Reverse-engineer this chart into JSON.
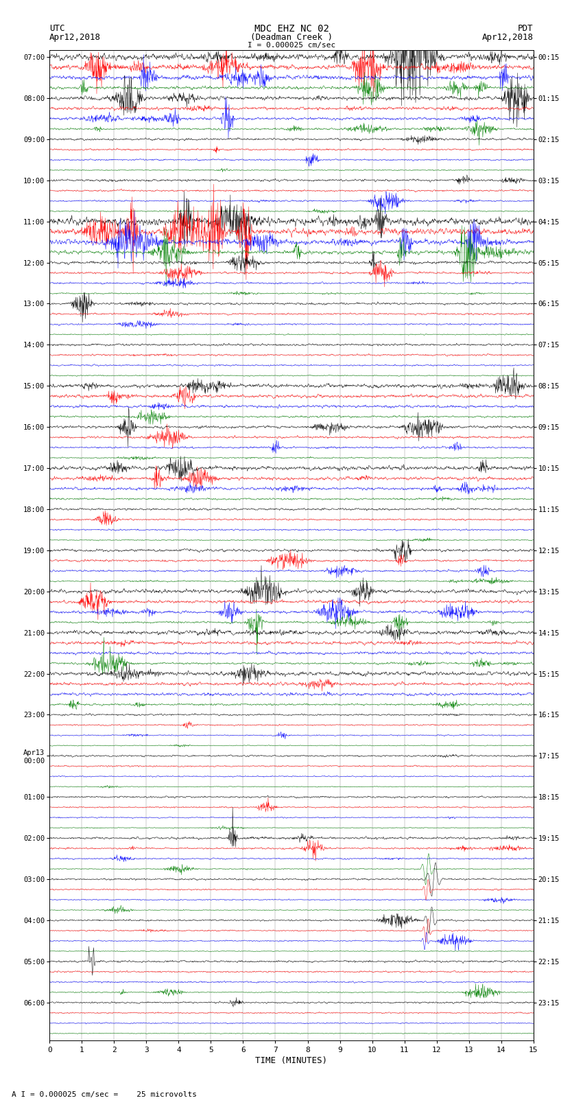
{
  "title_line1": "MDC EHZ NC 02",
  "title_line2": "(Deadman Creek )",
  "scale_label": "I = 0.000025 cm/sec",
  "footer_label": "A I = 0.000025 cm/sec =    25 microvolts",
  "xlabel": "TIME (MINUTES)",
  "utc_label": "UTC",
  "pdt_label": "PDT",
  "date_left": "Apr12,2018",
  "date_right": "Apr12,2018",
  "x_ticks": [
    0,
    1,
    2,
    3,
    4,
    5,
    6,
    7,
    8,
    9,
    10,
    11,
    12,
    13,
    14,
    15
  ],
  "x_min": 0,
  "x_max": 15,
  "colors": [
    "black",
    "red",
    "blue",
    "green"
  ],
  "bg_color": "white",
  "grid_color": "#aaaaaa",
  "n_rows": 96,
  "figsize": [
    8.5,
    16.13
  ],
  "dpi": 100,
  "utc_times_labeled": [
    "07:00",
    "08:00",
    "09:00",
    "10:00",
    "11:00",
    "12:00",
    "13:00",
    "14:00",
    "15:00",
    "16:00",
    "17:00",
    "18:00",
    "19:00",
    "20:00",
    "21:00",
    "22:00",
    "23:00",
    "Apr13\n00:00",
    "01:00",
    "02:00",
    "03:00",
    "04:00",
    "05:00",
    "06:00"
  ],
  "pdt_times_labeled": [
    "00:15",
    "01:15",
    "02:15",
    "03:15",
    "04:15",
    "05:15",
    "06:15",
    "07:15",
    "08:15",
    "09:15",
    "10:15",
    "11:15",
    "12:15",
    "13:15",
    "14:15",
    "15:15",
    "16:15",
    "17:15",
    "18:15",
    "19:15",
    "20:15",
    "21:15",
    "22:15",
    "23:15"
  ]
}
